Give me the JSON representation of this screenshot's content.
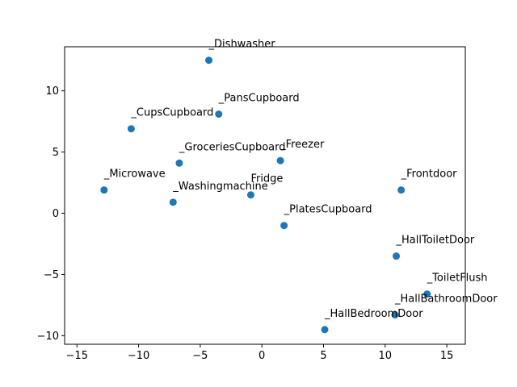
{
  "chart_data": {
    "type": "scatter",
    "title": "",
    "xlabel": "",
    "ylabel": "",
    "xlim": [
      -16,
      16.5
    ],
    "ylim": [
      -10.7,
      13.6
    ],
    "xticks": [
      -15,
      -10,
      -5,
      0,
      5,
      10,
      15
    ],
    "yticks": [
      -10,
      -5,
      0,
      5,
      10
    ],
    "xtick_labels": [
      "−15",
      "−10",
      "−5",
      "0",
      "5",
      "10",
      "15"
    ],
    "ytick_labels": [
      "−10",
      "−5",
      "0",
      "5",
      "10"
    ],
    "grid": false,
    "marker_color": "#1f77b4",
    "points": [
      {
        "label": "_Dishwasher",
        "x": -4.3,
        "y": 12.5
      },
      {
        "label": "_PansCupboard",
        "x": -3.5,
        "y": 8.1
      },
      {
        "label": "_CupsCupboard",
        "x": -10.6,
        "y": 6.9
      },
      {
        "label": "_GroceriesCupboard",
        "x": -6.7,
        "y": 4.1
      },
      {
        "label": "_Freezer",
        "x": 1.5,
        "y": 4.3
      },
      {
        "label": "_Microwave",
        "x": -12.8,
        "y": 1.9
      },
      {
        "label": "_Washingmachine",
        "x": -7.2,
        "y": 0.9
      },
      {
        "label": "Fridge",
        "x": -0.9,
        "y": 1.5
      },
      {
        "label": "_Frontdoor",
        "x": 11.3,
        "y": 1.9
      },
      {
        "label": "_PlatesCupboard",
        "x": 1.8,
        "y": -1.0
      },
      {
        "label": "_HallToiletDoor",
        "x": 10.9,
        "y": -3.5
      },
      {
        "label": "_ToiletFlush",
        "x": 13.4,
        "y": -6.6
      },
      {
        "label": "_HallBathroomDoor",
        "x": 10.8,
        "y": -8.3
      },
      {
        "label": "_HallBedroomDoor",
        "x": 5.1,
        "y": -9.5
      }
    ]
  }
}
